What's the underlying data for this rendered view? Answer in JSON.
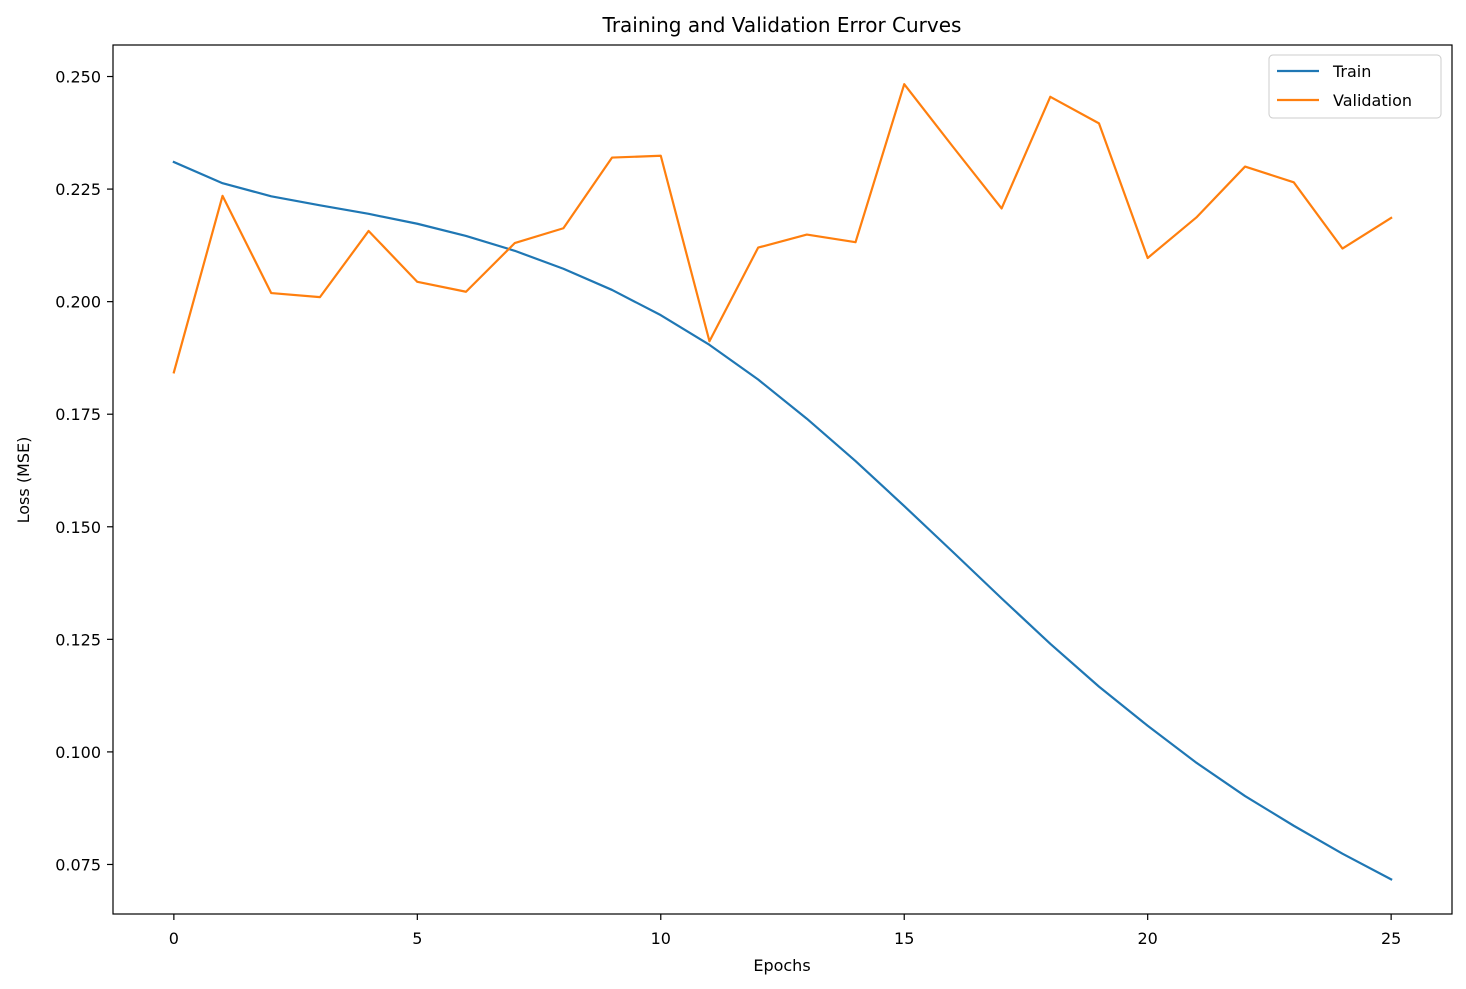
{
  "chart_data": {
    "type": "line",
    "title": "Training and Validation Error Curves",
    "xlabel": "Epochs",
    "ylabel": "Loss (MSE)",
    "xlim": [
      -1.25,
      26.25
    ],
    "ylim": [
      0.064,
      0.257
    ],
    "x_ticks": [
      0,
      5,
      10,
      15,
      20,
      25
    ],
    "x_tick_labels": [
      "0",
      "5",
      "10",
      "15",
      "20",
      "25"
    ],
    "y_ticks": [
      0.075,
      0.1,
      0.125,
      0.15,
      0.175,
      0.2,
      0.225,
      0.25
    ],
    "y_tick_labels": [
      "0.075",
      "0.100",
      "0.125",
      "0.150",
      "0.175",
      "0.200",
      "0.225",
      "0.250"
    ],
    "grid": false,
    "legend_position": "top-right",
    "x": [
      0,
      1,
      2,
      3,
      4,
      5,
      6,
      7,
      8,
      9,
      10,
      11,
      12,
      13,
      14,
      15,
      16,
      17,
      18,
      19,
      20,
      21,
      22,
      23,
      24,
      25
    ],
    "series": [
      {
        "name": "Train",
        "color": "#1f77b4",
        "values": [
          0.231,
          0.2263,
          0.2234,
          0.2214,
          0.2195,
          0.2173,
          0.2146,
          0.2113,
          0.2073,
          0.2026,
          0.197,
          0.1904,
          0.1827,
          0.174,
          0.1646,
          0.1546,
          0.1444,
          0.1341,
          0.124,
          0.1145,
          0.1058,
          0.0976,
          0.0902,
          0.0836,
          0.0774,
          0.0717
        ]
      },
      {
        "name": "Validation",
        "color": "#ff7f0e",
        "values": [
          0.1843,
          0.2235,
          0.2019,
          0.201,
          0.2157,
          0.2044,
          0.2022,
          0.213,
          0.2163,
          0.232,
          0.2324,
          0.1912,
          0.212,
          0.2149,
          0.2132,
          0.2483,
          0.2344,
          0.2207,
          0.2455,
          0.2396,
          0.2097,
          0.2187,
          0.23,
          0.2265,
          0.2118,
          0.2186
        ]
      }
    ]
  }
}
